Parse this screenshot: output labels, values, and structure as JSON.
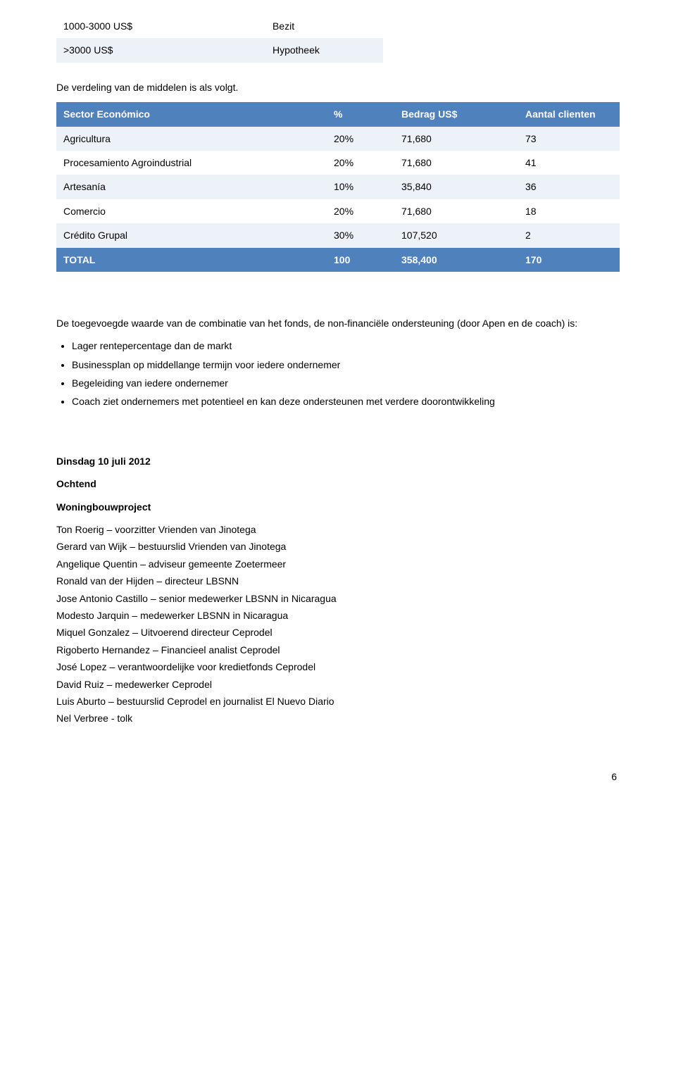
{
  "colors": {
    "header_bg": "#4f81bd",
    "header_fg": "#ffffff",
    "row_alt_bg": "#edf2f8",
    "row_plain_bg": "#ffffff",
    "text": "#000000"
  },
  "table1": {
    "rows": [
      {
        "c1": "1000-3000 US$",
        "c2": "Bezit",
        "alt": false
      },
      {
        "c1": ">3000 US$",
        "c2": "Hypotheek",
        "alt": true
      }
    ]
  },
  "intro_line": "De verdeling van de middelen is als volgt.",
  "table2": {
    "headers": [
      "Sector Económico",
      "%",
      "Bedrag  US$",
      "Aantal clienten"
    ],
    "rows": [
      {
        "cells": [
          "Agricultura",
          "20%",
          "71,680",
          "73"
        ],
        "alt": true
      },
      {
        "cells": [
          "Procesamiento Agroindustrial",
          "20%",
          "71,680",
          "41"
        ],
        "alt": false
      },
      {
        "cells": [
          "Artesanía",
          "10%",
          "35,840",
          "36"
        ],
        "alt": true
      },
      {
        "cells": [
          "Comercio",
          "20%",
          "71,680",
          "18"
        ],
        "alt": false
      },
      {
        "cells": [
          "Crédito Grupal",
          "30%",
          "107,520",
          "2"
        ],
        "alt": true
      }
    ],
    "total_row": {
      "cells": [
        " TOTAL",
        "100",
        "358,400",
        "170"
      ]
    }
  },
  "added_value_intro": "De toegevoegde waarde van de combinatie van het fonds, de non-financiële ondersteuning (door Apen en de coach) is:",
  "added_value_bullets": [
    "Lager rentepercentage dan de markt",
    "Businessplan op middellange termijn voor iedere ondernemer",
    "Begeleiding van iedere ondernemer",
    "Coach ziet ondernemers met potentieel en kan deze ondersteunen met verdere doorontwikkeling"
  ],
  "day_heading": "Dinsdag 10 juli 2012",
  "ochtend_label": "Ochtend",
  "project_label": "Woningbouwproject",
  "attendees": [
    "Ton Roerig – voorzitter Vrienden van Jinotega",
    "Gerard van Wijk – bestuurslid Vrienden van Jinotega",
    "Angelique Quentin – adviseur gemeente Zoetermeer",
    "Ronald van der Hijden – directeur LBSNN",
    "Jose Antonio Castillo – senior medewerker LBSNN in Nicaragua",
    "Modesto Jarquin – medewerker LBSNN in Nicaragua",
    "Miquel Gonzalez – Uitvoerend directeur Ceprodel",
    "Rigoberto Hernandez – Financieel analist Ceprodel",
    "José Lopez – verantwoordelijke voor kredietfonds Ceprodel",
    "David Ruiz – medewerker Ceprodel",
    "Luis Aburto – bestuurslid Ceprodel en journalist El Nuevo Diario",
    "Nel Verbree - tolk"
  ],
  "page_number": "6",
  "typography": {
    "base_font_family": "Arial",
    "base_font_size_pt": 11,
    "line_height": 1.6
  }
}
